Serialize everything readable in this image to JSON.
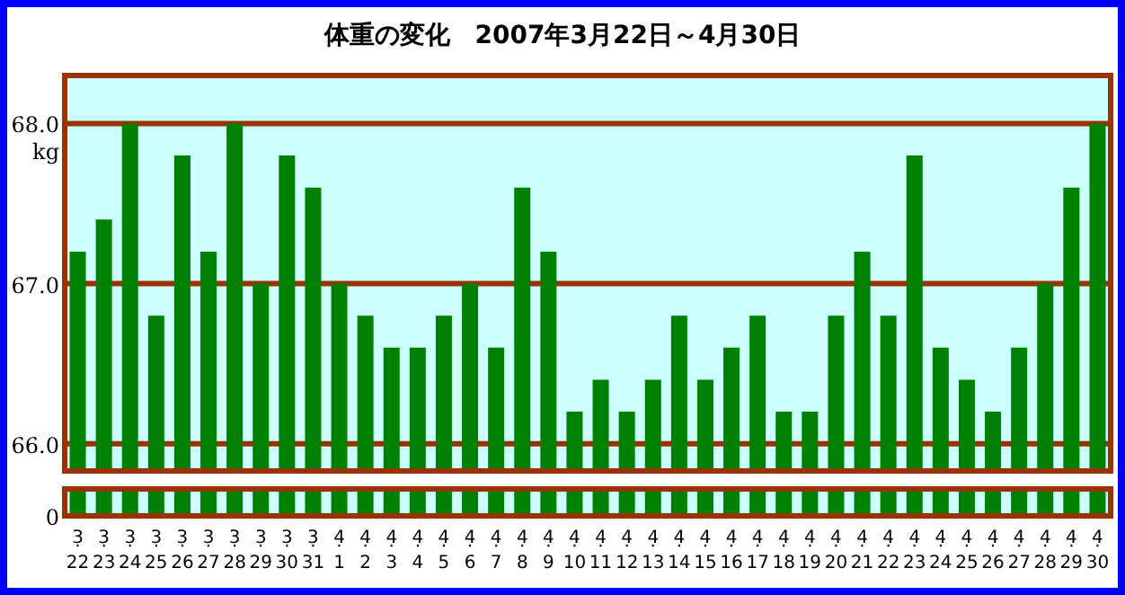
{
  "chart_data": {
    "type": "bar",
    "title": "体重の変化　2007年3月22日～4月30日",
    "ylabel": "kg",
    "categories": [
      "3·22",
      "3·23",
      "3·24",
      "3·25",
      "3·26",
      "3·27",
      "3·28",
      "3·29",
      "3·30",
      "3·31",
      "4·1",
      "4·2",
      "4·3",
      "4·4",
      "4·5",
      "4·6",
      "4·7",
      "4·8",
      "4·9",
      "4·10",
      "4·11",
      "4·12",
      "4·13",
      "4·14",
      "4·15",
      "4·16",
      "4·17",
      "4·18",
      "4·19",
      "4·20",
      "4·21",
      "4·22",
      "4·23",
      "4·24",
      "4·25",
      "4·26",
      "4·27",
      "4·28",
      "4·29",
      "4·30"
    ],
    "values": [
      67.2,
      67.4,
      68.0,
      66.8,
      67.8,
      67.2,
      68.0,
      67.0,
      67.8,
      67.6,
      67.0,
      66.8,
      66.6,
      66.6,
      66.8,
      67.0,
      66.6,
      67.6,
      67.2,
      66.2,
      66.4,
      66.2,
      66.4,
      66.8,
      66.4,
      66.6,
      66.8,
      66.2,
      66.2,
      66.8,
      67.2,
      66.8,
      67.8,
      66.6,
      66.4,
      66.2,
      66.6,
      67.0,
      67.6,
      68.0
    ],
    "color": "#008000",
    "ylim": [
      65.83,
      68.3
    ],
    "yticks": [
      {
        "value": 66,
        "label": "66.0"
      },
      {
        "value": 67,
        "label": "67.0"
      },
      {
        "value": 68,
        "label": "68.0"
      }
    ],
    "grid": "y",
    "annotations": [
      "0"
    ]
  }
}
